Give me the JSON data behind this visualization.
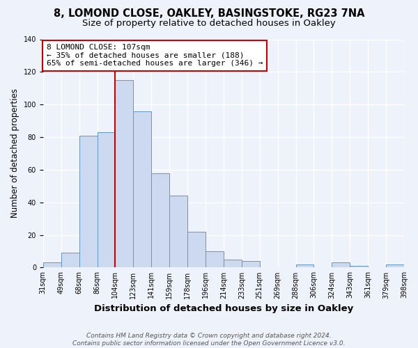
{
  "title_line1": "8, LOMOND CLOSE, OAKLEY, BASINGSTOKE, RG23 7NA",
  "title_line2": "Size of property relative to detached houses in Oakley",
  "xlabel": "Distribution of detached houses by size in Oakley",
  "ylabel": "Number of detached properties",
  "bin_labels": [
    "31sqm",
    "49sqm",
    "68sqm",
    "86sqm",
    "104sqm",
    "123sqm",
    "141sqm",
    "159sqm",
    "178sqm",
    "196sqm",
    "214sqm",
    "233sqm",
    "251sqm",
    "269sqm",
    "288sqm",
    "306sqm",
    "324sqm",
    "343sqm",
    "361sqm",
    "379sqm",
    "398sqm"
  ],
  "bar_values": [
    3,
    9,
    81,
    83,
    115,
    96,
    58,
    44,
    22,
    10,
    5,
    4,
    0,
    0,
    2,
    0,
    3,
    1,
    0,
    2
  ],
  "bar_color": "#cdd9ef",
  "bar_edge_color": "#6496c8",
  "vline_color": "#cc0000",
  "annotation_line1": "8 LOMOND CLOSE: 107sqm",
  "annotation_line2": "← 35% of detached houses are smaller (188)",
  "annotation_line3": "65% of semi-detached houses are larger (346) →",
  "annotation_box_color": "#ffffff",
  "annotation_box_edge": "#cc0000",
  "ylim": [
    0,
    140
  ],
  "yticks": [
    0,
    20,
    40,
    60,
    80,
    100,
    120,
    140
  ],
  "footer_line1": "Contains HM Land Registry data © Crown copyright and database right 2024.",
  "footer_line2": "Contains public sector information licensed under the Open Government Licence v3.0.",
  "background_color": "#eef2fa",
  "grid_color": "#ffffff",
  "title_fontsize": 10.5,
  "subtitle_fontsize": 9.5,
  "axis_label_fontsize": 8.5,
  "tick_fontsize": 7,
  "footer_fontsize": 6.5,
  "annot_fontsize": 8
}
